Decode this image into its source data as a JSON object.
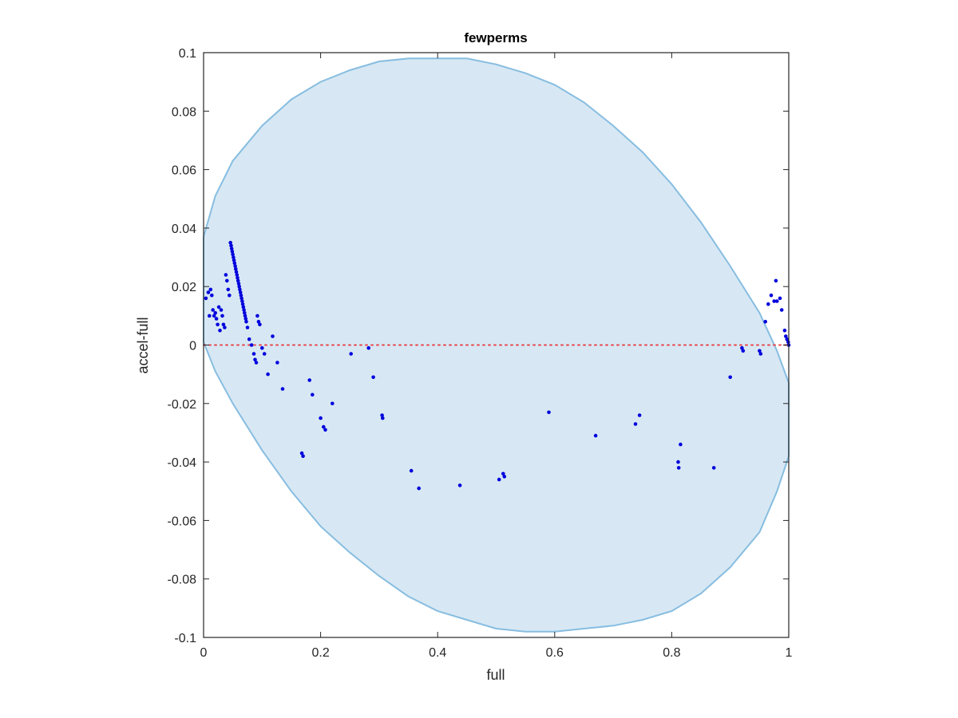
{
  "chart_data": {
    "type": "scatter",
    "title": "fewperms",
    "xlabel": "full",
    "ylabel": "accel-full",
    "xlim": [
      0,
      1
    ],
    "ylim": [
      -0.1,
      0.1
    ],
    "xticks": [
      "0",
      "0.2",
      "0.4",
      "0.6",
      "0.8",
      "1"
    ],
    "yticks": [
      "-0.1",
      "-0.08",
      "-0.06",
      "-0.04",
      "-0.02",
      "0",
      "0.02",
      "0.04",
      "0.06",
      "0.08",
      "0.1"
    ],
    "grid": false,
    "reference_line": {
      "y": 0,
      "style": "dotted",
      "color": "#e8474b"
    },
    "region": {
      "type": "ellipse",
      "fill": "#d7e8f4",
      "stroke": "#87bde0",
      "points": [
        [
          0,
          0.037
        ],
        [
          0.02,
          0.051
        ],
        [
          0.05,
          0.063
        ],
        [
          0.1,
          0.075
        ],
        [
          0.15,
          0.084
        ],
        [
          0.2,
          0.09
        ],
        [
          0.25,
          0.094
        ],
        [
          0.3,
          0.097
        ],
        [
          0.35,
          0.098
        ],
        [
          0.4,
          0.098
        ],
        [
          0.45,
          0.098
        ],
        [
          0.5,
          0.096
        ],
        [
          0.55,
          0.093
        ],
        [
          0.6,
          0.089
        ],
        [
          0.65,
          0.083
        ],
        [
          0.7,
          0.075
        ],
        [
          0.75,
          0.066
        ],
        [
          0.8,
          0.055
        ],
        [
          0.85,
          0.042
        ],
        [
          0.9,
          0.027
        ],
        [
          0.95,
          0.011
        ],
        [
          0.98,
          -0.002
        ],
        [
          1.0,
          -0.013
        ],
        [
          1.0,
          -0.038
        ],
        [
          0.98,
          -0.05
        ],
        [
          0.95,
          -0.064
        ],
        [
          0.9,
          -0.076
        ],
        [
          0.85,
          -0.085
        ],
        [
          0.8,
          -0.091
        ],
        [
          0.75,
          -0.094
        ],
        [
          0.7,
          -0.096
        ],
        [
          0.65,
          -0.097
        ],
        [
          0.6,
          -0.098
        ],
        [
          0.55,
          -0.098
        ],
        [
          0.5,
          -0.097
        ],
        [
          0.45,
          -0.094
        ],
        [
          0.4,
          -0.091
        ],
        [
          0.35,
          -0.086
        ],
        [
          0.3,
          -0.079
        ],
        [
          0.25,
          -0.071
        ],
        [
          0.2,
          -0.062
        ],
        [
          0.15,
          -0.05
        ],
        [
          0.1,
          -0.036
        ],
        [
          0.05,
          -0.02
        ],
        [
          0.02,
          -0.009
        ],
        [
          0,
          0.001
        ]
      ]
    },
    "series": [
      {
        "marker_color": "#0000dd",
        "points": [
          [
            0.004,
            0.016
          ],
          [
            0.008,
            0.018
          ],
          [
            0.01,
            0.01
          ],
          [
            0.012,
            0.019
          ],
          [
            0.014,
            0.017
          ],
          [
            0.016,
            0.012
          ],
          [
            0.018,
            0.01
          ],
          [
            0.02,
            0.011
          ],
          [
            0.022,
            0.009
          ],
          [
            0.024,
            0.007
          ],
          [
            0.026,
            0.013
          ],
          [
            0.028,
            0.005
          ],
          [
            0.03,
            0.012
          ],
          [
            0.032,
            0.01
          ],
          [
            0.034,
            0.007
          ],
          [
            0.036,
            0.006
          ],
          [
            0.038,
            0.024
          ],
          [
            0.04,
            0.022
          ],
          [
            0.042,
            0.019
          ],
          [
            0.044,
            0.017
          ],
          [
            0.046,
            0.035
          ],
          [
            0.047,
            0.034
          ],
          [
            0.048,
            0.033
          ],
          [
            0.049,
            0.032
          ],
          [
            0.05,
            0.031
          ],
          [
            0.051,
            0.03
          ],
          [
            0.052,
            0.029
          ],
          [
            0.053,
            0.028
          ],
          [
            0.054,
            0.027
          ],
          [
            0.055,
            0.026
          ],
          [
            0.056,
            0.025
          ],
          [
            0.057,
            0.024
          ],
          [
            0.058,
            0.023
          ],
          [
            0.059,
            0.022
          ],
          [
            0.06,
            0.021
          ],
          [
            0.061,
            0.02
          ],
          [
            0.062,
            0.019
          ],
          [
            0.063,
            0.018
          ],
          [
            0.064,
            0.017
          ],
          [
            0.065,
            0.016
          ],
          [
            0.066,
            0.015
          ],
          [
            0.067,
            0.014
          ],
          [
            0.068,
            0.013
          ],
          [
            0.069,
            0.012
          ],
          [
            0.07,
            0.011
          ],
          [
            0.071,
            0.01
          ],
          [
            0.072,
            0.009
          ],
          [
            0.073,
            0.008
          ],
          [
            0.075,
            0.006
          ],
          [
            0.078,
            0.002
          ],
          [
            0.082,
            0.0
          ],
          [
            0.086,
            -0.003
          ],
          [
            0.088,
            -0.005
          ],
          [
            0.09,
            -0.006
          ],
          [
            0.092,
            0.01
          ],
          [
            0.094,
            0.008
          ],
          [
            0.096,
            0.007
          ],
          [
            0.1,
            -0.001
          ],
          [
            0.104,
            -0.003
          ],
          [
            0.11,
            -0.01
          ],
          [
            0.118,
            0.003
          ],
          [
            0.126,
            -0.006
          ],
          [
            0.135,
            -0.015
          ],
          [
            0.168,
            -0.037
          ],
          [
            0.17,
            -0.038
          ],
          [
            0.181,
            -0.012
          ],
          [
            0.186,
            -0.017
          ],
          [
            0.2,
            -0.025
          ],
          [
            0.205,
            -0.028
          ],
          [
            0.208,
            -0.029
          ],
          [
            0.22,
            -0.02
          ],
          [
            0.252,
            -0.003
          ],
          [
            0.282,
            -0.001
          ],
          [
            0.29,
            -0.011
          ],
          [
            0.305,
            -0.024
          ],
          [
            0.306,
            -0.025
          ],
          [
            0.355,
            -0.043
          ],
          [
            0.368,
            -0.049
          ],
          [
            0.438,
            -0.048
          ],
          [
            0.505,
            -0.046
          ],
          [
            0.512,
            -0.044
          ],
          [
            0.514,
            -0.045
          ],
          [
            0.59,
            -0.023
          ],
          [
            0.67,
            -0.031
          ],
          [
            0.738,
            -0.027
          ],
          [
            0.745,
            -0.024
          ],
          [
            0.811,
            -0.04
          ],
          [
            0.812,
            -0.042
          ],
          [
            0.815,
            -0.034
          ],
          [
            0.872,
            -0.042
          ],
          [
            0.9,
            -0.011
          ],
          [
            0.92,
            -0.001
          ],
          [
            0.922,
            -0.002
          ],
          [
            0.95,
            -0.002
          ],
          [
            0.952,
            -0.003
          ],
          [
            0.96,
            0.008
          ],
          [
            0.965,
            0.014
          ],
          [
            0.97,
            0.017
          ],
          [
            0.975,
            0.015
          ],
          [
            0.978,
            0.022
          ],
          [
            0.98,
            0.015
          ],
          [
            0.985,
            0.016
          ],
          [
            0.988,
            0.012
          ],
          [
            0.993,
            0.005
          ],
          [
            0.995,
            0.003
          ],
          [
            0.997,
            0.002
          ],
          [
            0.999,
            0.001
          ],
          [
            1.0,
            0.0
          ]
        ]
      }
    ]
  }
}
